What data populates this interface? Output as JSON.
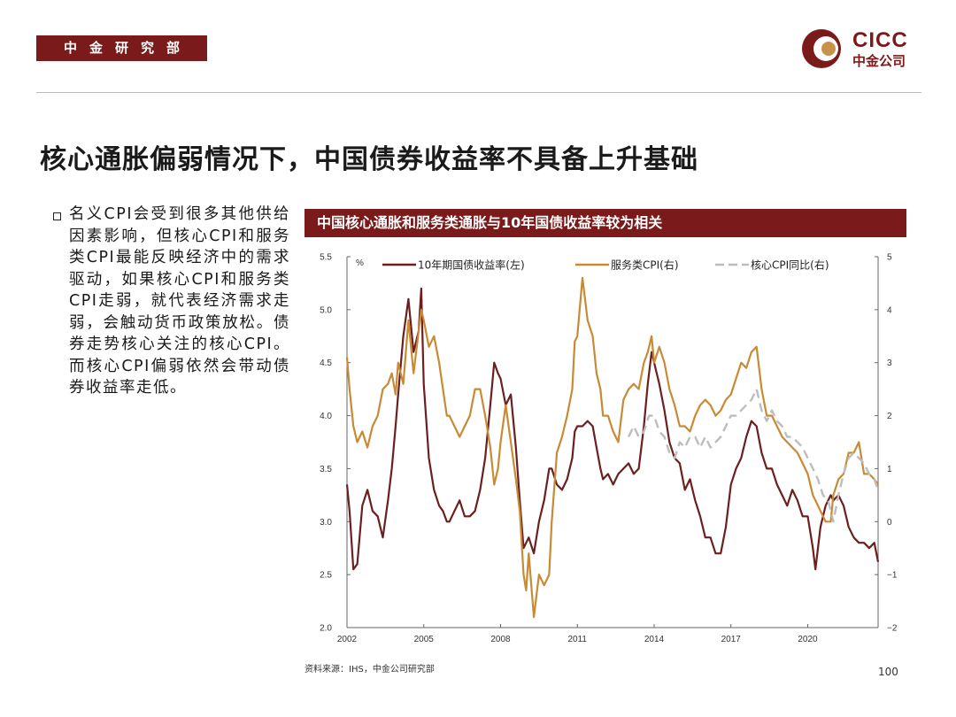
{
  "header": {
    "dept_label": "中金研究部",
    "logo_en": "CICC",
    "logo_cn": "中金公司"
  },
  "headline": "核心通胀偏弱情况下，中国债券收益率不具备上升基础",
  "body_text": "名义CPI会受到很多其他供给因素影响，但核心CPI和服务类CPI最能反映经济中的需求驱动，如果核心CPI和服务类CPI走弱，就代表经济需求走弱，会触动货币政策放松。债券走势核心关注的核心CPI。而核心CPI偏弱依然会带动债券收益率走低。",
  "chart_banner": "中国核心通胀和服务类通胀与10年国债收益率较为相关",
  "source": "资料来源：IHS，中金公司研究部",
  "page_number": "100",
  "colors": {
    "brand": "#7a1a1a",
    "yield": "#6b1f1f",
    "services": "#c88a35",
    "core": "#bdbdbd"
  },
  "chart_data": {
    "type": "line",
    "title": "中国核心通胀和服务类通胀与10年国债收益率较为相关",
    "left_unit": "%",
    "left_axis": {
      "min": 2.0,
      "max": 5.5,
      "ticks": [
        "2.0",
        "2.5",
        "3.0",
        "3.5",
        "4.0",
        "4.5",
        "5.0",
        "5.5"
      ]
    },
    "right_axis": {
      "min": -2,
      "max": 5,
      "ticks": [
        "−2",
        "−1",
        "0",
        "1",
        "2",
        "3",
        "4",
        "5"
      ]
    },
    "x_axis": {
      "min": 2002,
      "max": 2022.75,
      "ticks": [
        "2002",
        "2005",
        "2008",
        "2011",
        "2014",
        "2017",
        "2020"
      ]
    },
    "legend": [
      "10年期国债收益率(左)",
      "服务类CPI(右)",
      "核心CPI同比(右)"
    ],
    "series": [
      {
        "name": "10年期国债收益率(左)",
        "axis": "left",
        "x": [
          2002,
          2002.1,
          2002.25,
          2002.4,
          2002.6,
          2002.8,
          2003,
          2003.2,
          2003.4,
          2003.6,
          2003.75,
          2003.9,
          2004,
          2004.2,
          2004.4,
          2004.6,
          2004.8,
          2004.9,
          2005,
          2005.2,
          2005.4,
          2005.6,
          2005.75,
          2005.9,
          2006,
          2006.2,
          2006.4,
          2006.6,
          2006.8,
          2007,
          2007.2,
          2007.4,
          2007.6,
          2007.75,
          2007.9,
          2008,
          2008.2,
          2008.4,
          2008.6,
          2008.75,
          2008.9,
          2009,
          2009.1,
          2009.3,
          2009.5,
          2009.7,
          2009.9,
          2010,
          2010.2,
          2010.4,
          2010.6,
          2010.8,
          2010.9,
          2011,
          2011.2,
          2011.4,
          2011.6,
          2011.75,
          2011.9,
          2012,
          2012.2,
          2012.4,
          2012.6,
          2012.8,
          2013,
          2013.2,
          2013.4,
          2013.6,
          2013.75,
          2013.9,
          2014,
          2014.2,
          2014.4,
          2014.6,
          2014.8,
          2015,
          2015.2,
          2015.4,
          2015.6,
          2015.8,
          2016,
          2016.2,
          2016.4,
          2016.6,
          2016.8,
          2017,
          2017.2,
          2017.4,
          2017.6,
          2017.8,
          2018,
          2018.2,
          2018.4,
          2018.6,
          2018.8,
          2019,
          2019.2,
          2019.4,
          2019.6,
          2019.8,
          2020,
          2020.2,
          2020.3,
          2020.5,
          2020.7,
          2020.9,
          2021,
          2021.2,
          2021.4,
          2021.6,
          2021.8,
          2022,
          2022.2,
          2022.4,
          2022.6,
          2022.75
        ],
        "values": [
          3.35,
          3.1,
          2.55,
          2.6,
          3.15,
          3.3,
          3.1,
          3.05,
          2.85,
          3.2,
          3.5,
          3.9,
          4.2,
          4.75,
          5.1,
          4.6,
          4.8,
          5.2,
          4.3,
          3.6,
          3.3,
          3.15,
          3.1,
          3.0,
          3.0,
          3.1,
          3.2,
          3.05,
          3.05,
          3.1,
          3.3,
          3.6,
          4.1,
          4.5,
          4.4,
          4.35,
          4.1,
          4.2,
          3.7,
          3.2,
          2.75,
          2.8,
          2.85,
          2.7,
          3.0,
          3.2,
          3.5,
          3.5,
          3.35,
          3.3,
          3.4,
          3.6,
          3.85,
          3.9,
          3.9,
          3.95,
          3.9,
          3.7,
          3.5,
          3.4,
          3.45,
          3.35,
          3.45,
          3.5,
          3.55,
          3.45,
          3.5,
          3.9,
          4.3,
          4.6,
          4.5,
          4.3,
          4.05,
          3.75,
          3.6,
          3.55,
          3.3,
          3.4,
          3.2,
          3.05,
          2.85,
          2.85,
          2.7,
          2.7,
          2.95,
          3.35,
          3.5,
          3.6,
          3.8,
          3.95,
          3.9,
          3.65,
          3.5,
          3.5,
          3.35,
          3.25,
          3.15,
          3.3,
          3.2,
          3.05,
          3.05,
          2.75,
          2.55,
          2.95,
          3.15,
          3.25,
          3.2,
          3.25,
          3.15,
          2.95,
          2.85,
          2.8,
          2.8,
          2.75,
          2.8,
          2.62
        ]
      },
      {
        "name": "服务类CPI(右)",
        "axis": "right",
        "x": [
          2002,
          2002.1,
          2002.25,
          2002.4,
          2002.6,
          2002.8,
          2003,
          2003.2,
          2003.4,
          2003.6,
          2003.75,
          2003.9,
          2004,
          2004.2,
          2004.4,
          2004.6,
          2004.8,
          2004.9,
          2005,
          2005.2,
          2005.4,
          2005.6,
          2005.75,
          2005.9,
          2006,
          2006.2,
          2006.4,
          2006.6,
          2006.8,
          2007,
          2007.2,
          2007.4,
          2007.6,
          2007.75,
          2007.9,
          2008,
          2008.2,
          2008.4,
          2008.6,
          2008.75,
          2008.9,
          2009,
          2009.1,
          2009.3,
          2009.5,
          2009.7,
          2009.9,
          2010,
          2010.2,
          2010.4,
          2010.6,
          2010.8,
          2010.9,
          2011,
          2011.2,
          2011.4,
          2011.6,
          2011.75,
          2011.9,
          2012,
          2012.2,
          2012.4,
          2012.6,
          2012.8,
          2013,
          2013.2,
          2013.4,
          2013.6,
          2013.75,
          2013.9,
          2014,
          2014.2,
          2014.4,
          2014.6,
          2014.8,
          2015,
          2015.2,
          2015.4,
          2015.6,
          2015.8,
          2016,
          2016.2,
          2016.4,
          2016.6,
          2016.8,
          2017,
          2017.2,
          2017.4,
          2017.6,
          2017.8,
          2018,
          2018.2,
          2018.4,
          2018.6,
          2018.8,
          2019,
          2019.2,
          2019.4,
          2019.6,
          2019.8,
          2020,
          2020.2,
          2020.3,
          2020.5,
          2020.7,
          2020.9,
          2021,
          2021.2,
          2021.4,
          2021.6,
          2021.8,
          2022,
          2022.2,
          2022.4,
          2022.6,
          2022.75
        ],
        "values": [
          3.1,
          2.5,
          1.8,
          1.5,
          1.7,
          1.4,
          1.8,
          2.0,
          2.5,
          2.6,
          2.8,
          2.4,
          3.0,
          2.6,
          3.8,
          2.8,
          3.6,
          4.0,
          3.8,
          3.3,
          3.5,
          3.0,
          2.5,
          2.0,
          2.0,
          1.8,
          1.6,
          1.8,
          2.0,
          2.5,
          2.5,
          2.0,
          1.4,
          0.7,
          1.0,
          1.5,
          2.2,
          1.5,
          0.8,
          0.2,
          -1.0,
          -1.3,
          -0.6,
          -1.8,
          -1.0,
          -1.2,
          -1.0,
          0.0,
          1.3,
          1.6,
          2.0,
          2.5,
          3.4,
          3.5,
          4.6,
          3.8,
          3.5,
          2.8,
          2.5,
          2.0,
          2.0,
          1.7,
          1.5,
          2.3,
          2.5,
          2.6,
          2.5,
          3.0,
          3.2,
          3.5,
          3.0,
          3.3,
          3.0,
          2.5,
          2.2,
          1.8,
          1.8,
          1.7,
          2.0,
          2.2,
          2.3,
          2.2,
          2.0,
          2.1,
          2.3,
          2.4,
          2.7,
          3.0,
          2.9,
          3.2,
          3.3,
          2.5,
          2.0,
          2.0,
          1.8,
          1.6,
          1.5,
          1.4,
          1.3,
          1.1,
          0.9,
          0.5,
          0.4,
          0.2,
          0.0,
          0.0,
          0.5,
          0.8,
          0.9,
          1.3,
          1.3,
          1.5,
          0.9,
          0.9,
          0.8,
          0.7
        ]
      },
      {
        "name": "核心CPI同比(右)",
        "axis": "right",
        "x": [
          2013,
          2013.2,
          2013.4,
          2013.6,
          2013.8,
          2014,
          2014.2,
          2014.4,
          2014.6,
          2014.8,
          2015,
          2015.2,
          2015.4,
          2015.6,
          2015.8,
          2016,
          2016.2,
          2016.4,
          2016.6,
          2016.8,
          2017,
          2017.2,
          2017.4,
          2017.6,
          2017.8,
          2018,
          2018.2,
          2018.4,
          2018.6,
          2018.8,
          2019,
          2019.2,
          2019.4,
          2019.6,
          2019.8,
          2020,
          2020.2,
          2020.4,
          2020.6,
          2020.8,
          2021,
          2021.2,
          2021.4,
          2021.6,
          2021.8,
          2022,
          2022.2,
          2022.4,
          2022.6,
          2022.75
        ],
        "values": [
          1.6,
          1.8,
          1.6,
          1.7,
          2.0,
          2.0,
          1.7,
          1.6,
          1.3,
          1.2,
          1.5,
          1.4,
          1.6,
          1.6,
          1.4,
          1.6,
          1.4,
          1.5,
          1.6,
          1.8,
          2.0,
          2.0,
          2.1,
          2.2,
          2.3,
          2.5,
          2.1,
          1.9,
          2.1,
          1.9,
          1.8,
          1.6,
          1.6,
          1.5,
          1.4,
          1.2,
          1.0,
          0.8,
          0.5,
          0.4,
          0.0,
          0.5,
          0.9,
          1.2,
          1.3,
          1.2,
          1.1,
          0.9,
          0.8,
          0.6
        ]
      }
    ]
  }
}
